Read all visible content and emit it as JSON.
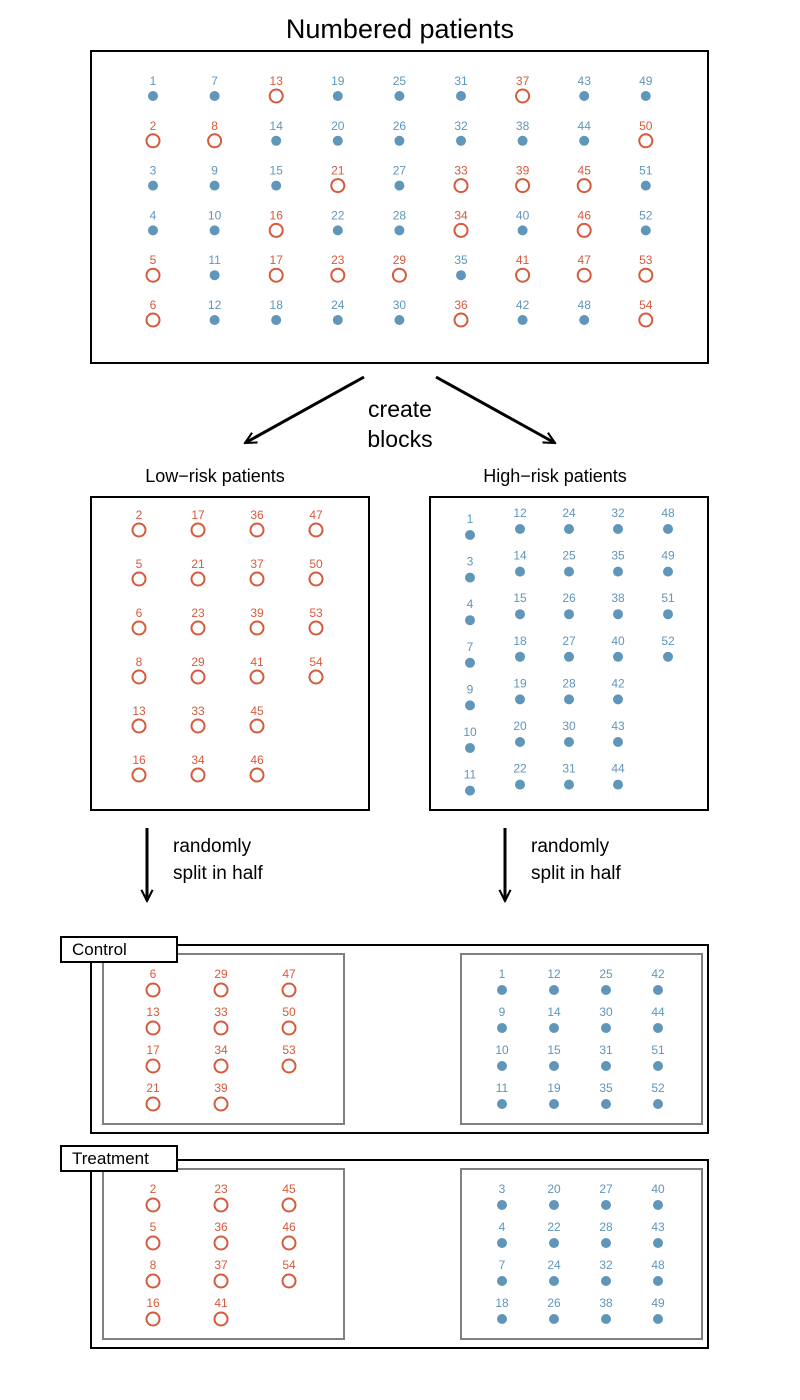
{
  "title": "Numbered patients",
  "arrow_label": [
    "create",
    "blocks"
  ],
  "split_label": [
    "randomly",
    "split in half"
  ],
  "colors": {
    "low": "#d65a3c",
    "high": "#5f96ba",
    "frame": "#000000",
    "inner_frame": "#808080"
  },
  "low_risk_ids": [
    2,
    5,
    6,
    8,
    13,
    16,
    17,
    21,
    23,
    29,
    33,
    34,
    36,
    37,
    39,
    41,
    45,
    46,
    47,
    50,
    53,
    54
  ],
  "numbered_grid": {
    "rows": 6,
    "cols": 9,
    "start": 1,
    "end": 54
  },
  "low_block": {
    "label": "Low−risk patients",
    "columns": [
      [
        2,
        5,
        6,
        8,
        13,
        16
      ],
      [
        17,
        21,
        23,
        29,
        33,
        34
      ],
      [
        36,
        37,
        39,
        41,
        45,
        46
      ],
      [
        47,
        50,
        53,
        54
      ]
    ]
  },
  "high_block": {
    "label": "High−risk patients",
    "columns": [
      [
        1,
        3,
        4,
        7,
        9,
        10,
        11
      ],
      [
        12,
        14,
        15,
        18,
        19,
        20,
        22
      ],
      [
        24,
        25,
        26,
        27,
        28,
        30,
        31
      ],
      [
        32,
        35,
        38,
        40,
        42,
        43,
        44
      ],
      [
        48,
        49,
        51,
        52
      ]
    ]
  },
  "groups": [
    {
      "label": "Control",
      "low_columns": [
        [
          6,
          13,
          17,
          21
        ],
        [
          29,
          33,
          34,
          39
        ],
        [
          47,
          50,
          53
        ]
      ],
      "high_columns": [
        [
          1,
          9,
          10,
          11
        ],
        [
          12,
          14,
          15,
          19
        ],
        [
          25,
          30,
          31,
          35
        ],
        [
          42,
          44,
          51,
          52
        ]
      ]
    },
    {
      "label": "Treatment",
      "low_columns": [
        [
          2,
          5,
          8,
          16
        ],
        [
          23,
          36,
          37,
          41
        ],
        [
          45,
          46,
          54
        ]
      ],
      "high_columns": [
        [
          3,
          4,
          7,
          18
        ],
        [
          20,
          22,
          24,
          26
        ],
        [
          27,
          28,
          32,
          38
        ],
        [
          40,
          43,
          48,
          49
        ]
      ]
    }
  ]
}
